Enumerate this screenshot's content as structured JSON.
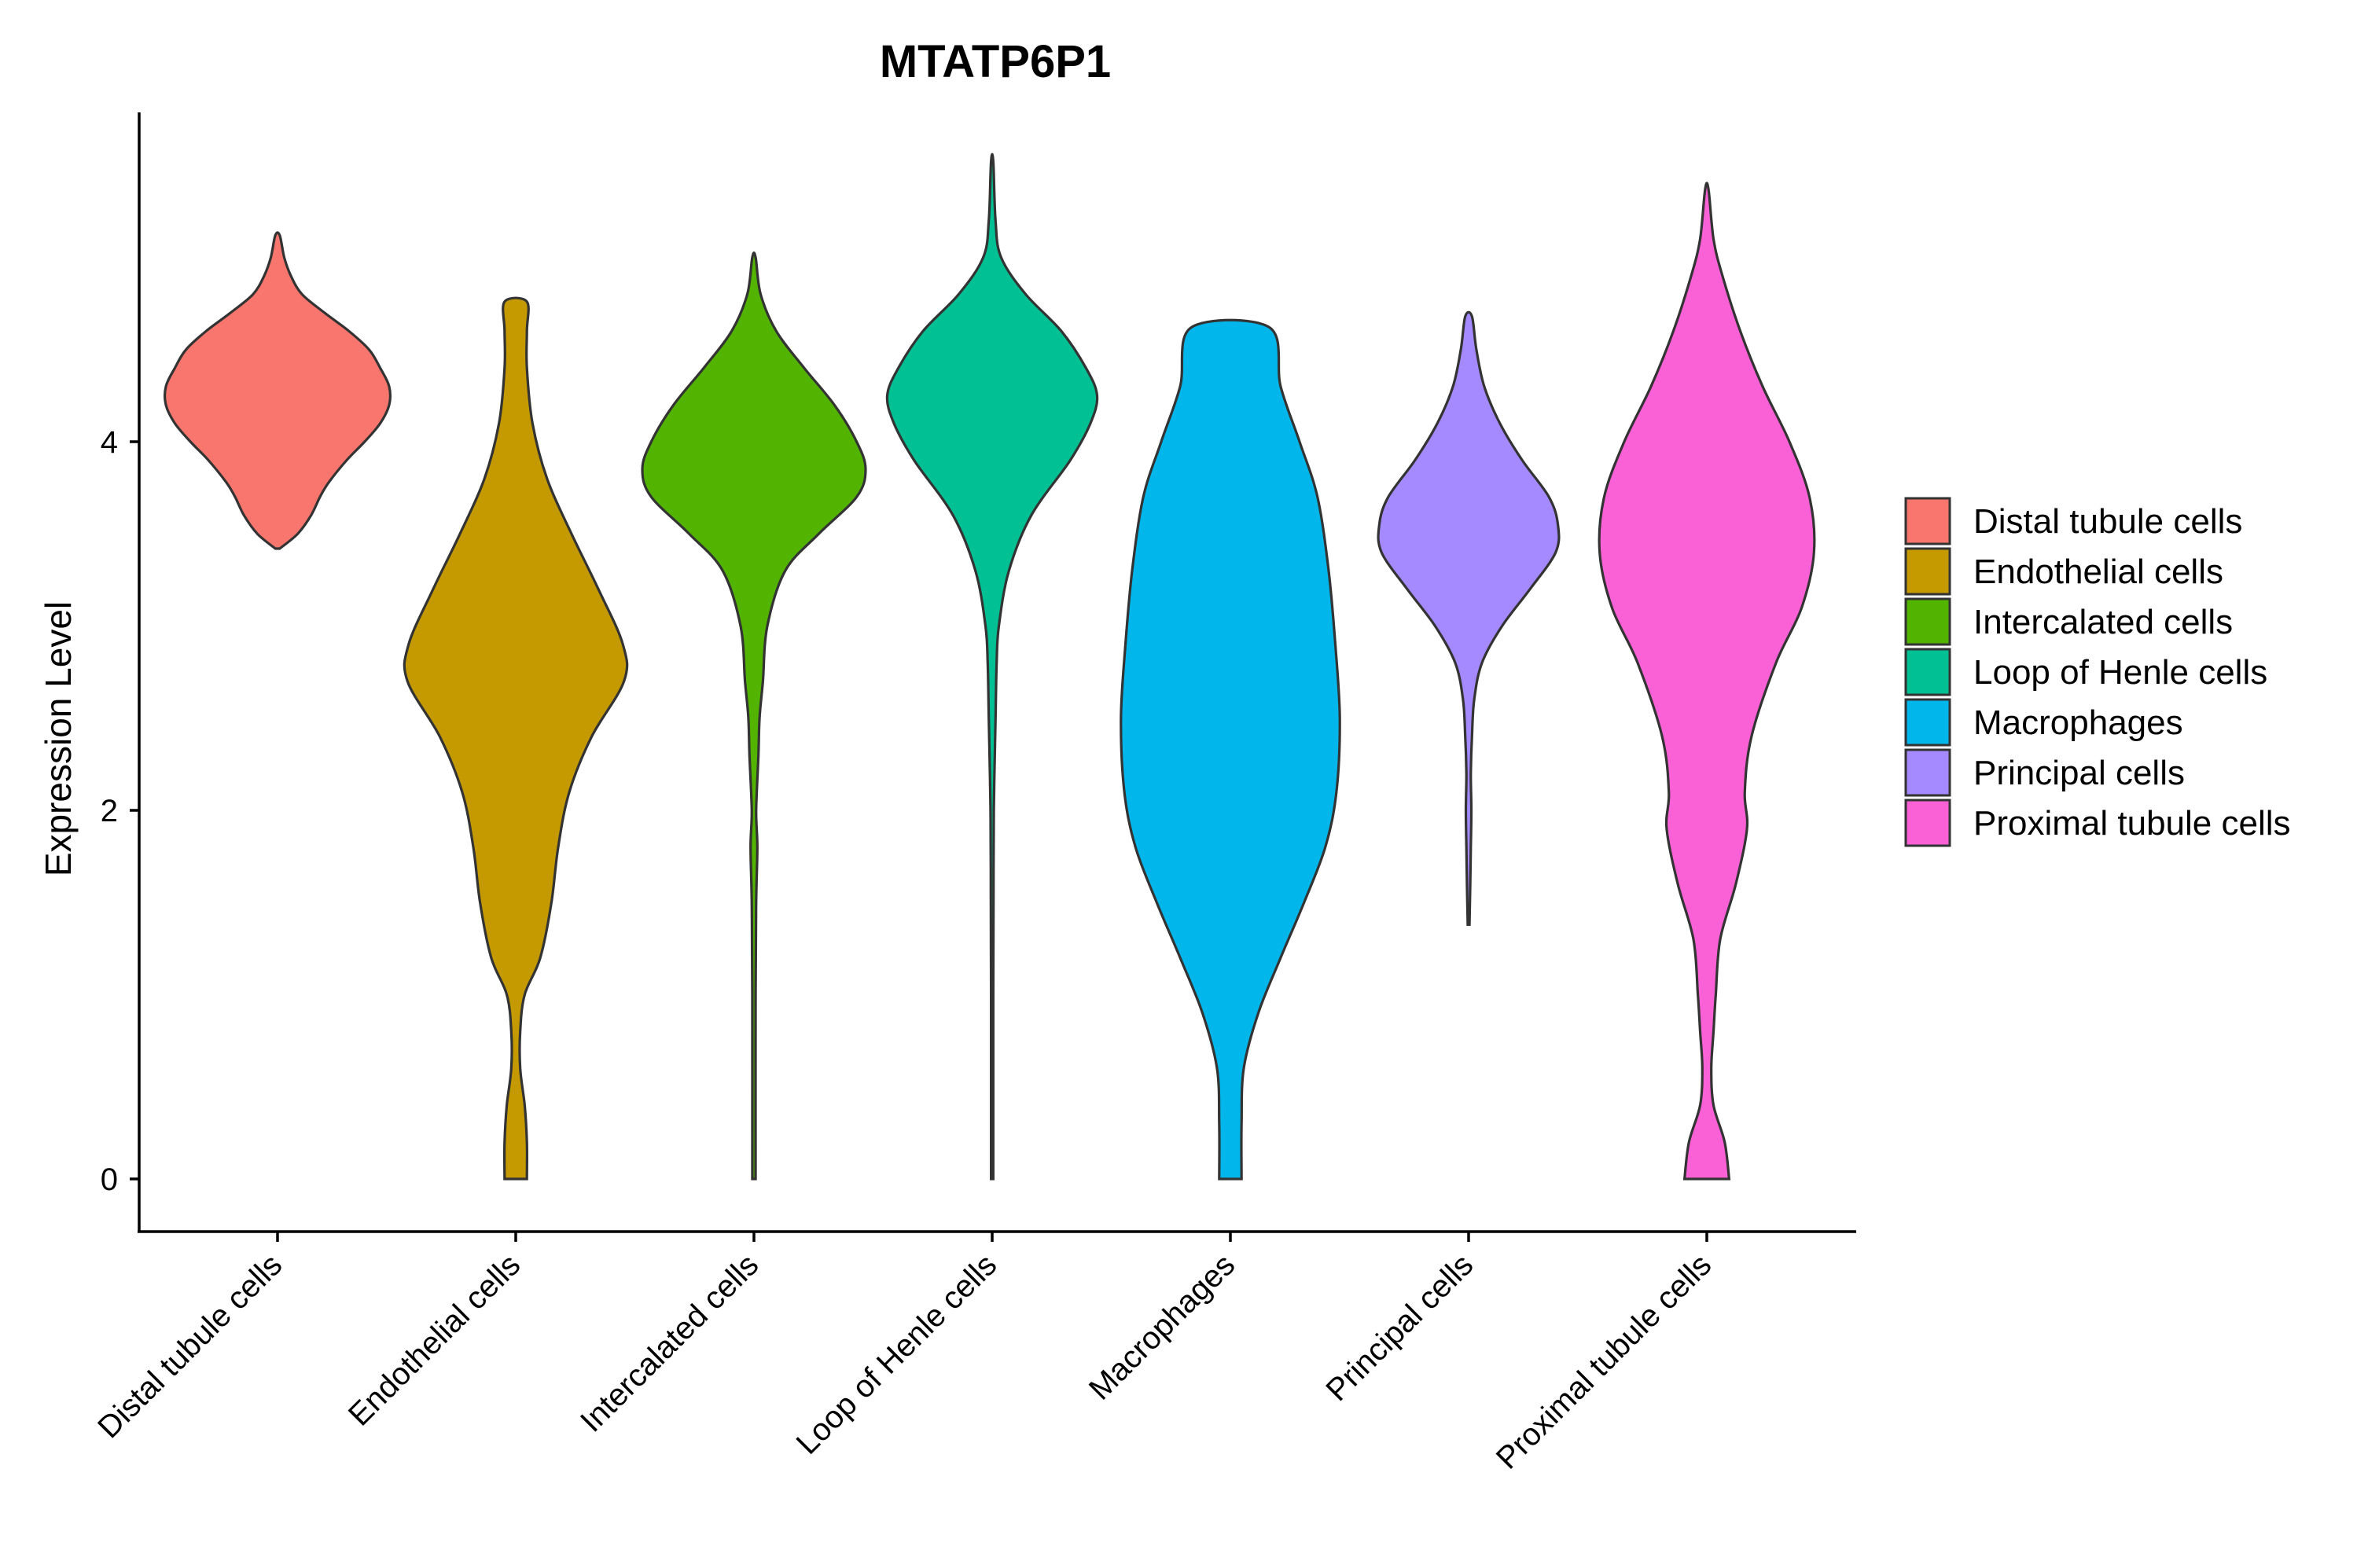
{
  "chart_data": {
    "type": "violin",
    "title": "MTATP6P1",
    "xlabel": "",
    "ylabel": "Expression Level",
    "ylim": [
      -0.27,
      5.8
    ],
    "yticks": [
      0,
      2,
      4
    ],
    "categories": [
      "Distal tubule cells",
      "Endothelial cells",
      "Intercalated cells",
      "Loop of Henle cells",
      "Macrophages",
      "Principal cells",
      "Proximal tubule cells"
    ],
    "colors": [
      "#F8766D",
      "#C49A00",
      "#53B400",
      "#00C094",
      "#00B6EB",
      "#A58AFF",
      "#FB61D7"
    ],
    "legend_position": "right",
    "series": [
      {
        "name": "Distal tubule cells",
        "min": 3.42,
        "max": 5.12,
        "density": [
          [
            3.42,
            0.02
          ],
          [
            3.5,
            0.18
          ],
          [
            3.6,
            0.3
          ],
          [
            3.7,
            0.38
          ],
          [
            3.78,
            0.46
          ],
          [
            3.9,
            0.62
          ],
          [
            4.0,
            0.78
          ],
          [
            4.1,
            0.92
          ],
          [
            4.2,
            1.0
          ],
          [
            4.3,
            1.0
          ],
          [
            4.4,
            0.92
          ],
          [
            4.5,
            0.82
          ],
          [
            4.6,
            0.64
          ],
          [
            4.7,
            0.42
          ],
          [
            4.8,
            0.22
          ],
          [
            4.9,
            0.12
          ],
          [
            5.0,
            0.06
          ],
          [
            5.12,
            0.02
          ]
        ]
      },
      {
        "name": "Endothelial cells",
        "min": 0.0,
        "max": 4.76,
        "density": [
          [
            0.0,
            0.1
          ],
          [
            0.2,
            0.1
          ],
          [
            0.4,
            0.08
          ],
          [
            0.6,
            0.04
          ],
          [
            0.8,
            0.04
          ],
          [
            1.0,
            0.08
          ],
          [
            1.2,
            0.22
          ],
          [
            1.5,
            0.32
          ],
          [
            1.8,
            0.38
          ],
          [
            2.1,
            0.48
          ],
          [
            2.4,
            0.68
          ],
          [
            2.7,
            0.97
          ],
          [
            2.9,
            0.96
          ],
          [
            3.2,
            0.74
          ],
          [
            3.5,
            0.5
          ],
          [
            3.8,
            0.28
          ],
          [
            4.1,
            0.15
          ],
          [
            4.4,
            0.1
          ],
          [
            4.6,
            0.1
          ],
          [
            4.76,
            0.1
          ]
        ]
      },
      {
        "name": "Intercalated cells",
        "min": 0.0,
        "max": 5.0,
        "density": [
          [
            0.0,
            0.015
          ],
          [
            1.0,
            0.015
          ],
          [
            1.5,
            0.02
          ],
          [
            1.8,
            0.03
          ],
          [
            2.0,
            0.02
          ],
          [
            2.3,
            0.04
          ],
          [
            2.5,
            0.05
          ],
          [
            2.7,
            0.08
          ],
          [
            3.0,
            0.12
          ],
          [
            3.3,
            0.28
          ],
          [
            3.5,
            0.58
          ],
          [
            3.7,
            0.92
          ],
          [
            3.85,
            1.0
          ],
          [
            4.0,
            0.92
          ],
          [
            4.2,
            0.72
          ],
          [
            4.4,
            0.45
          ],
          [
            4.6,
            0.2
          ],
          [
            4.8,
            0.06
          ],
          [
            5.0,
            0.015
          ]
        ]
      },
      {
        "name": "Loop of Henle cells",
        "min": 0.0,
        "max": 5.52,
        "density": [
          [
            0.0,
            0.01
          ],
          [
            1.0,
            0.01
          ],
          [
            1.5,
            0.012
          ],
          [
            2.0,
            0.015
          ],
          [
            2.5,
            0.03
          ],
          [
            2.8,
            0.04
          ],
          [
            3.0,
            0.06
          ],
          [
            3.3,
            0.15
          ],
          [
            3.6,
            0.35
          ],
          [
            3.9,
            0.7
          ],
          [
            4.1,
            0.88
          ],
          [
            4.25,
            0.94
          ],
          [
            4.4,
            0.84
          ],
          [
            4.6,
            0.62
          ],
          [
            4.8,
            0.3
          ],
          [
            5.0,
            0.08
          ],
          [
            5.2,
            0.03
          ],
          [
            5.52,
            0.01
          ]
        ]
      },
      {
        "name": "Macrophages",
        "min": 0.0,
        "max": 4.62,
        "density": [
          [
            0.0,
            0.1
          ],
          [
            0.3,
            0.1
          ],
          [
            0.6,
            0.12
          ],
          [
            0.9,
            0.25
          ],
          [
            1.2,
            0.45
          ],
          [
            1.5,
            0.66
          ],
          [
            1.8,
            0.85
          ],
          [
            2.1,
            0.95
          ],
          [
            2.5,
            0.98
          ],
          [
            2.9,
            0.94
          ],
          [
            3.3,
            0.88
          ],
          [
            3.7,
            0.78
          ],
          [
            4.0,
            0.62
          ],
          [
            4.3,
            0.45
          ],
          [
            4.62,
            0.35
          ]
        ]
      },
      {
        "name": "Principal cells",
        "min": 1.38,
        "max": 4.68,
        "density": [
          [
            1.38,
            0.008
          ],
          [
            1.6,
            0.015
          ],
          [
            1.8,
            0.02
          ],
          [
            2.0,
            0.025
          ],
          [
            2.2,
            0.02
          ],
          [
            2.4,
            0.03
          ],
          [
            2.6,
            0.05
          ],
          [
            2.8,
            0.12
          ],
          [
            3.0,
            0.3
          ],
          [
            3.2,
            0.55
          ],
          [
            3.4,
            0.78
          ],
          [
            3.55,
            0.8
          ],
          [
            3.7,
            0.72
          ],
          [
            3.9,
            0.48
          ],
          [
            4.1,
            0.28
          ],
          [
            4.3,
            0.14
          ],
          [
            4.5,
            0.07
          ],
          [
            4.68,
            0.03
          ]
        ]
      },
      {
        "name": "Proximal tubule cells",
        "min": 0.0,
        "max": 5.37,
        "density": [
          [
            0.0,
            0.2
          ],
          [
            0.2,
            0.16
          ],
          [
            0.4,
            0.06
          ],
          [
            0.6,
            0.04
          ],
          [
            0.8,
            0.06
          ],
          [
            1.0,
            0.08
          ],
          [
            1.3,
            0.12
          ],
          [
            1.6,
            0.26
          ],
          [
            1.9,
            0.36
          ],
          [
            2.1,
            0.34
          ],
          [
            2.4,
            0.4
          ],
          [
            2.8,
            0.62
          ],
          [
            3.1,
            0.85
          ],
          [
            3.4,
            0.96
          ],
          [
            3.7,
            0.92
          ],
          [
            4.0,
            0.74
          ],
          [
            4.3,
            0.5
          ],
          [
            4.6,
            0.3
          ],
          [
            4.9,
            0.14
          ],
          [
            5.1,
            0.06
          ],
          [
            5.37,
            0.015
          ]
        ]
      }
    ]
  }
}
